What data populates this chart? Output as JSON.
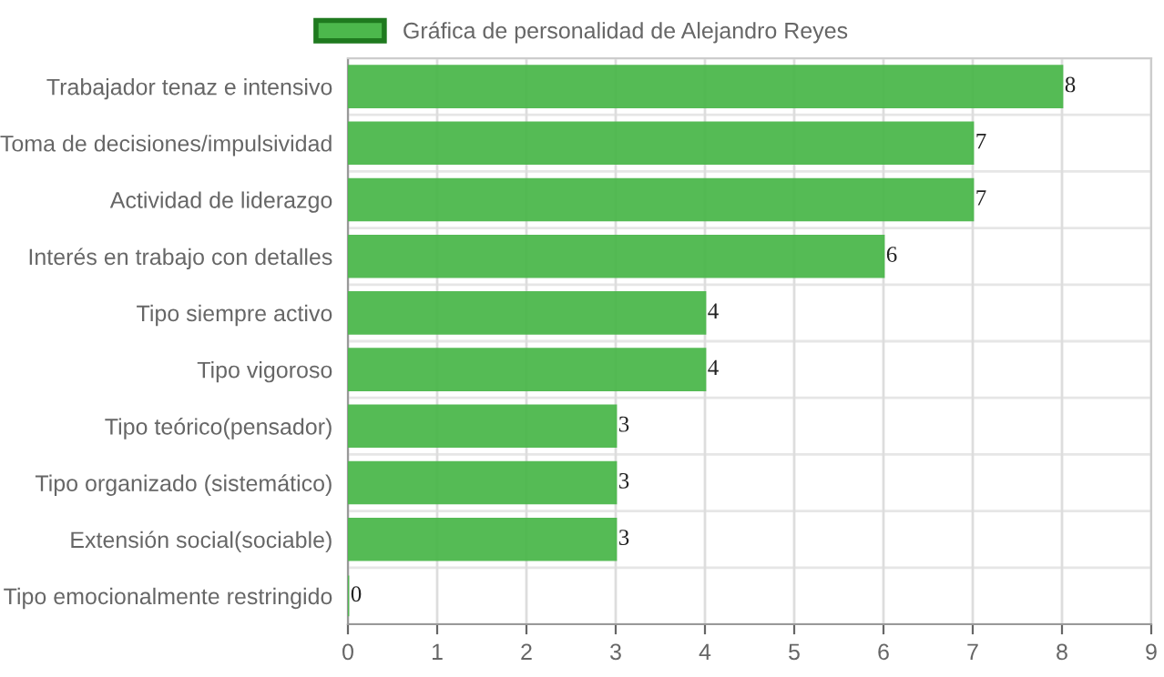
{
  "chart_data": {
    "type": "bar",
    "orientation": "horizontal",
    "categories": [
      "Trabajador tenaz e intensivo",
      "Toma de decisiones/impulsividad",
      "Actividad de liderazgo",
      "Interés en trabajo con detalles",
      "Tipo siempre activo",
      "Tipo vigoroso",
      "Tipo teórico(pensador)",
      "Tipo organizado (sistemático)",
      "Extensión social(sociable)",
      "Tipo emocionalmente restringido"
    ],
    "series": [
      {
        "name": "Gráfica de personalidad de Alejandro Reyes",
        "color": "#4cb84c",
        "values": [
          8,
          7,
          7,
          6,
          4,
          4,
          3,
          3,
          3,
          0
        ]
      }
    ],
    "xlim": [
      0,
      9
    ],
    "xticks": [
      0,
      1,
      2,
      3,
      4,
      5,
      6,
      7,
      8,
      9
    ],
    "grid": true,
    "legend": "top",
    "data_labels": true
  }
}
